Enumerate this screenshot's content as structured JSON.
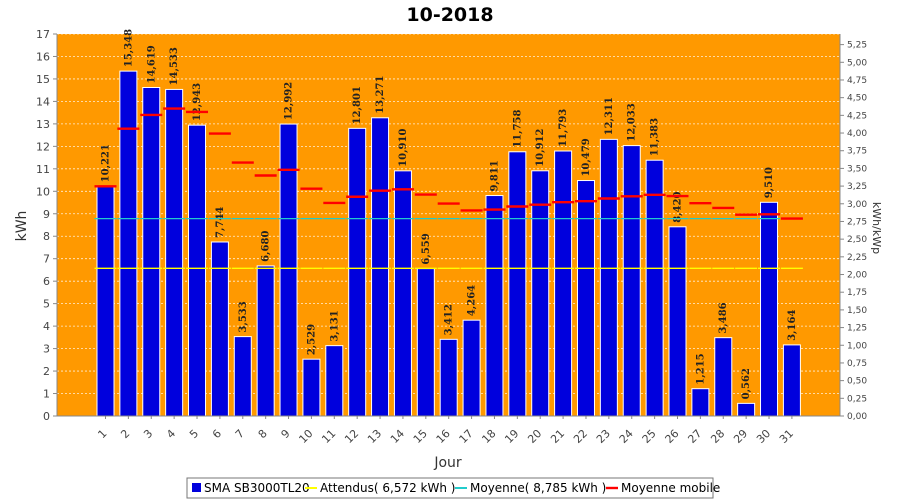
{
  "chart_data": {
    "type": "bar",
    "title": "10-2018",
    "xlabel": "Jour",
    "ylabel": "kWh",
    "y2label": "kWh/kWp",
    "ylim": [
      0,
      17
    ],
    "y2lim": [
      0,
      5.4
    ],
    "y_ticks": [
      "0",
      "1",
      "2",
      "3",
      "4",
      "5",
      "6",
      "7",
      "8",
      "9",
      "10",
      "11",
      "12",
      "13",
      "14",
      "15",
      "16",
      "17"
    ],
    "y2_ticks": [
      "0,00",
      "0,25",
      "0,50",
      "0,75",
      "1,00",
      "1,25",
      "1,50",
      "1,75",
      "2,00",
      "2,25",
      "2,50",
      "2,75",
      "3,00",
      "3,25",
      "3,50",
      "3,75",
      "4,00",
      "4,25",
      "4,50",
      "4,75",
      "5,00",
      "5,25"
    ],
    "categories": [
      "1",
      "2",
      "3",
      "4",
      "5",
      "6",
      "7",
      "8",
      "9",
      "10",
      "11",
      "12",
      "13",
      "14",
      "15",
      "16",
      "17",
      "18",
      "19",
      "20",
      "21",
      "22",
      "23",
      "24",
      "25",
      "26",
      "27",
      "28",
      "29",
      "30",
      "31"
    ],
    "series": [
      {
        "name": "SMA SB3000TL20",
        "kind": "bar",
        "color": "#0000dd",
        "values": [
          10.221,
          15.348,
          14.619,
          14.533,
          12.943,
          7.744,
          3.533,
          6.68,
          12.992,
          2.529,
          3.131,
          12.801,
          13.271,
          10.91,
          6.559,
          3.412,
          4.264,
          9.811,
          11.758,
          10.912,
          11.793,
          10.479,
          12.311,
          12.033,
          11.383,
          8.42,
          1.215,
          3.486,
          0.562,
          9.51,
          3.164
        ],
        "labels": [
          "10,221",
          "15,348",
          "14,619",
          "14,533",
          "12,943",
          "7,744",
          "3,533",
          "6,680",
          "12,992",
          "2,529",
          "3,131",
          "12,801",
          "13,271",
          "10,910",
          "6,559",
          "3,412",
          "4,264",
          "9,811",
          "11,758",
          "10,912",
          "11,793",
          "10,479",
          "12,311",
          "12,033",
          "11,383",
          "8,420",
          "1,215",
          "3,486",
          "0,562",
          "9,510",
          "3,164"
        ]
      },
      {
        "name": "Attendus( 6,572 kWh )",
        "kind": "reference",
        "color": "#ffff00",
        "value": 6.572
      },
      {
        "name": "Moyenne( 8,785 kWh )",
        "kind": "reference",
        "color": "#22cccc",
        "value": 8.785
      },
      {
        "name": "Moyenne mobile",
        "kind": "marker",
        "color": "#ff0000",
        "values": [
          10.221,
          12.785,
          13.396,
          13.68,
          13.533,
          12.568,
          11.277,
          10.703,
          10.957,
          10.114,
          9.48,
          9.757,
          10.027,
          10.09,
          9.855,
          9.453,
          9.147,
          9.186,
          9.323,
          9.402,
          9.515,
          9.561,
          9.679,
          9.778,
          9.843,
          9.788,
          9.471,
          9.258,
          8.958,
          8.975,
          8.787
        ]
      }
    ],
    "legend_position": "bottom",
    "plot_background": "#ff9900",
    "grid": true
  }
}
